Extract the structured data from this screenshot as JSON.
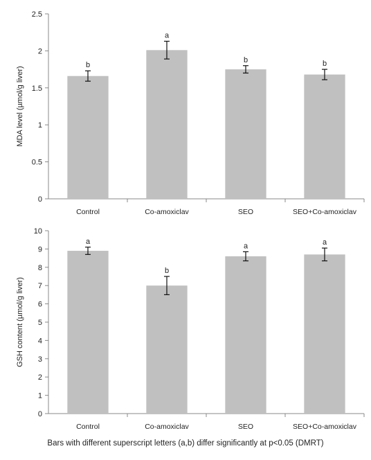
{
  "chart_data": [
    {
      "type": "bar",
      "categories": [
        "Control",
        "Co-amoxiclav",
        "SEO",
        "SEO+Co-amoxiclav"
      ],
      "values": [
        1.66,
        2.01,
        1.75,
        1.68
      ],
      "errors": [
        0.07,
        0.12,
        0.05,
        0.07
      ],
      "significance": [
        "b",
        "a",
        "b",
        "b"
      ],
      "ylabel": "MDA level (µmol/g liver)",
      "ylim": [
        0,
        2.5
      ],
      "yticks": [
        0,
        0.5,
        1,
        1.5,
        2,
        2.5
      ],
      "ytick_labels": [
        "0",
        "0.5",
        "1",
        "1.5",
        "2",
        "2.5"
      ],
      "bar_color": "#c0c0c0",
      "grid": false
    },
    {
      "type": "bar",
      "categories": [
        "Control",
        "Co-amoxiclav",
        "SEO",
        "SEO+Co-amoxiclav"
      ],
      "values": [
        8.9,
        7.0,
        8.6,
        8.7
      ],
      "errors": [
        0.2,
        0.5,
        0.25,
        0.35
      ],
      "significance": [
        "a",
        "b",
        "a",
        "a"
      ],
      "ylabel": "GSH content (µmol/g liver)",
      "ylim": [
        0,
        10
      ],
      "yticks": [
        0,
        1,
        2,
        3,
        4,
        5,
        6,
        7,
        8,
        9,
        10
      ],
      "ytick_labels": [
        "0",
        "1",
        "2",
        "3",
        "4",
        "5",
        "6",
        "7",
        "8",
        "9",
        "10"
      ],
      "bar_color": "#c0c0c0",
      "grid": false
    }
  ],
  "caption": "Bars with different superscript letters (a,b) differ significantly at p<0.05 (DMRT)"
}
